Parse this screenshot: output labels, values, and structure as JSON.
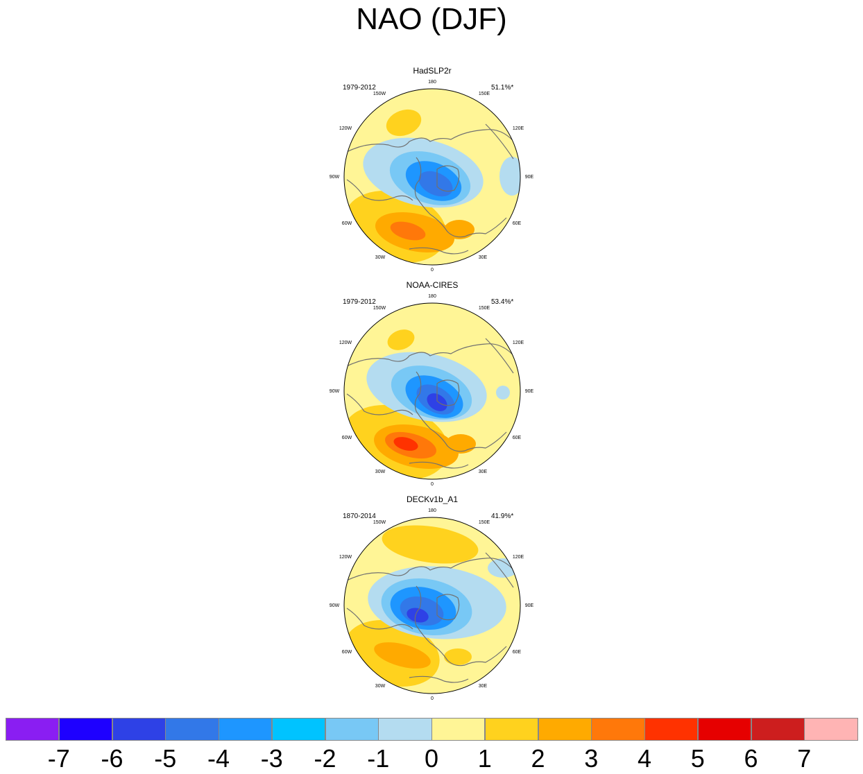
{
  "title": "NAO (DJF)",
  "panels": [
    {
      "name": "HadSLP2r",
      "years": "1979-2012",
      "pct": "51.1%*"
    },
    {
      "name": "NOAA-CIRES",
      "years": "1979-2012",
      "pct": "53.4%*"
    },
    {
      "name": "DECKv1b_A1",
      "years": "1870-2014",
      "pct": "41.9%*"
    }
  ],
  "lon_labels": [
    "180",
    "150E",
    "120E",
    "90E",
    "60E",
    "30E",
    "0",
    "30W",
    "60W",
    "90W",
    "120W",
    "150W"
  ],
  "colorbar": {
    "colors": [
      "#8a1ef2",
      "#1e00ff",
      "#2e41e6",
      "#3278e8",
      "#1e96ff",
      "#00c3ff",
      "#78c8f5",
      "#b4dcf0",
      "#fff596",
      "#ffd21e",
      "#ffaa00",
      "#ff780a",
      "#ff3200",
      "#e60000",
      "#cd1e1e",
      "#ffb4b4"
    ],
    "labels": [
      "-7",
      "-6",
      "-5",
      "-4",
      "-3",
      "-2",
      "-1",
      "0",
      "1",
      "2",
      "3",
      "4",
      "5",
      "6",
      "7"
    ]
  }
}
